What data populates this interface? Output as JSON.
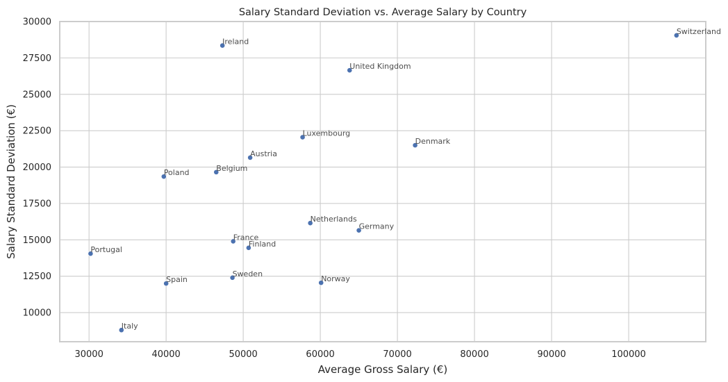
{
  "chart_data": {
    "type": "scatter",
    "title": "Salary Standard Deviation vs. Average Salary by Country",
    "xlabel": "Average Gross Salary (€)",
    "ylabel": "Salary Standard Deviation (€)",
    "xlim": [
      26200,
      110000
    ],
    "ylim": [
      8000,
      30000
    ],
    "xticks": [
      30000,
      40000,
      50000,
      60000,
      70000,
      80000,
      90000,
      100000
    ],
    "yticks": [
      10000,
      12500,
      15000,
      17500,
      20000,
      22500,
      25000,
      27500,
      30000
    ],
    "grid": true,
    "point_color": "#4c72b0",
    "points": [
      {
        "label": "Switzerland",
        "x": 106200,
        "y": 29050
      },
      {
        "label": "Ireland",
        "x": 47300,
        "y": 28350
      },
      {
        "label": "United Kingdom",
        "x": 63800,
        "y": 26650
      },
      {
        "label": "Luxembourg",
        "x": 57700,
        "y": 22050
      },
      {
        "label": "Denmark",
        "x": 72300,
        "y": 21500
      },
      {
        "label": "Austria",
        "x": 50900,
        "y": 20650
      },
      {
        "label": "Belgium",
        "x": 46500,
        "y": 19650
      },
      {
        "label": "Poland",
        "x": 39700,
        "y": 19350
      },
      {
        "label": "Netherlands",
        "x": 58700,
        "y": 16150
      },
      {
        "label": "Germany",
        "x": 65000,
        "y": 15650
      },
      {
        "label": "France",
        "x": 48700,
        "y": 14900
      },
      {
        "label": "Finland",
        "x": 50700,
        "y": 14450
      },
      {
        "label": "Portugal",
        "x": 30200,
        "y": 14050
      },
      {
        "label": "Sweden",
        "x": 48600,
        "y": 12400
      },
      {
        "label": "Norway",
        "x": 60100,
        "y": 12050
      },
      {
        "label": "Spain",
        "x": 40000,
        "y": 12000
      },
      {
        "label": "Italy",
        "x": 34200,
        "y": 8800
      }
    ]
  }
}
